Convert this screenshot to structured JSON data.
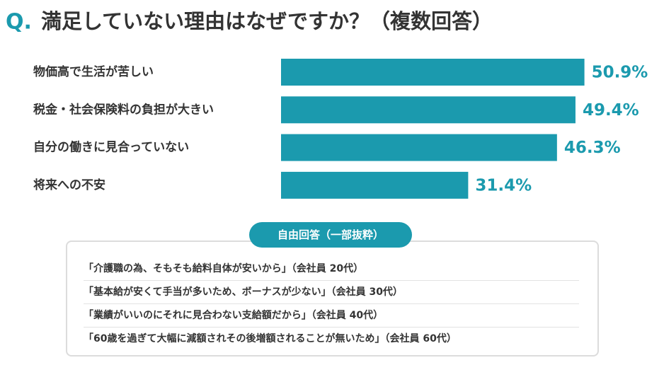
{
  "chart_data": {
    "type": "bar",
    "orientation": "horizontal",
    "title_prefix": "Q.",
    "title": "満足していない理由はなぜですか？（複数回答）",
    "categories": [
      "物価高で生活が苦しい",
      "税金・社会保険料の負担が大きい",
      "自分の働きに見合っていない",
      "将来への不安"
    ],
    "values": [
      50.9,
      49.4,
      46.3,
      31.4
    ],
    "value_labels": [
      "50.9%",
      "49.4%",
      "46.3%",
      "31.4%"
    ],
    "color": "#1b9aae"
  },
  "free_answers": {
    "heading": "自由回答（一部抜粋）",
    "items": [
      "「介護職の為、そもそも給料自体が安いから」（会社員 20代）",
      "「基本給が安くて手当が多いため、ボーナスが少ない」（会社員 30代）",
      "「業績がいいのにそれに見合わない支給額だから」（会社員 40代）",
      "「60歳を過ぎて大幅に減額されその後増額されることが無いため」（会社員 60代）"
    ]
  }
}
